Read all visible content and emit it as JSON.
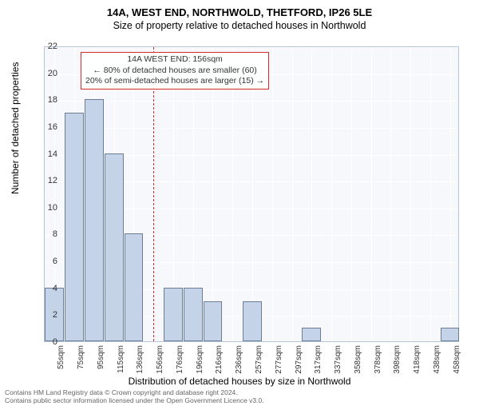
{
  "titles": {
    "line1": "14A, WEST END, NORTHWOLD, THETFORD, IP26 5LE",
    "line2": "Size of property relative to detached houses in Northwold"
  },
  "chart": {
    "type": "histogram",
    "ylabel": "Number of detached properties",
    "xlabel": "Distribution of detached houses by size in Northwold",
    "ylim": [
      0,
      22
    ],
    "yticks": [
      0,
      2,
      4,
      6,
      8,
      10,
      12,
      14,
      16,
      18,
      20,
      22
    ],
    "x_categories": [
      "55sqm",
      "75sqm",
      "95sqm",
      "115sqm",
      "136sqm",
      "156sqm",
      "176sqm",
      "196sqm",
      "216sqm",
      "236sqm",
      "257sqm",
      "277sqm",
      "297sqm",
      "317sqm",
      "337sqm",
      "358sqm",
      "378sqm",
      "398sqm",
      "418sqm",
      "438sqm",
      "458sqm"
    ],
    "values": [
      4,
      17,
      18,
      14,
      8,
      0,
      4,
      4,
      3,
      0,
      3,
      0,
      0,
      1,
      0,
      0,
      0,
      0,
      0,
      0,
      1
    ],
    "bar_fill": "#c5d3e8",
    "bar_border": "#6d7d96",
    "plot_bg": "#f6f8fb",
    "grid_color": "#ffffff",
    "plot_border": "#b7c5d8",
    "annotation": {
      "line1": "14A WEST END: 156sqm",
      "line2": "← 80% of detached houses are smaller (60)",
      "line3": "20% of semi-detached houses are larger (15) →",
      "border": "#d42a2a"
    },
    "vline_color": "#d42a2a",
    "vline_category_index": 5
  },
  "attribution": {
    "line1": "Contains HM Land Registry data © Crown copyright and database right 2024.",
    "line2": "Contains public sector information licensed under the Open Government Licence v3.0."
  }
}
